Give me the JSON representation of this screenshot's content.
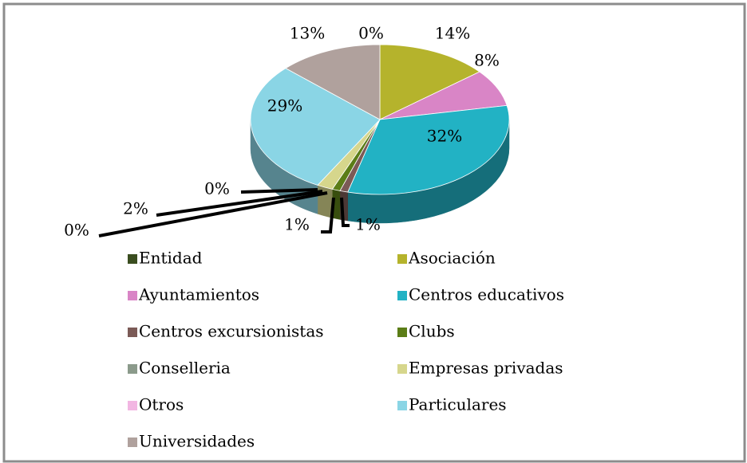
{
  "chart_data": {
    "type": "pie",
    "categories": [
      "Entidad",
      "Asociación",
      "Ayuntamientos",
      "Centros educativos",
      "Centros excursionistas",
      "Clubs",
      "Conselleria",
      "Empresas privadas",
      "Otros",
      "Particulares",
      "Universidades"
    ],
    "values": [
      0,
      14,
      8,
      32,
      1,
      1,
      0,
      2,
      0,
      29,
      13
    ],
    "value_labels": [
      "0%",
      "14%",
      "8%",
      "32%",
      "1%",
      "1%",
      "0%",
      "2%",
      "0%",
      "29%",
      "13%"
    ],
    "colors": [
      "#3a4d1f",
      "#b5b32c",
      "#d985c6",
      "#22b2c4",
      "#7b5a56",
      "#5b7d17",
      "#8b9a8b",
      "#d6d68c",
      "#f2b6e2",
      "#8ad5e5",
      "#b0a19d"
    ],
    "legend": "bottom"
  }
}
